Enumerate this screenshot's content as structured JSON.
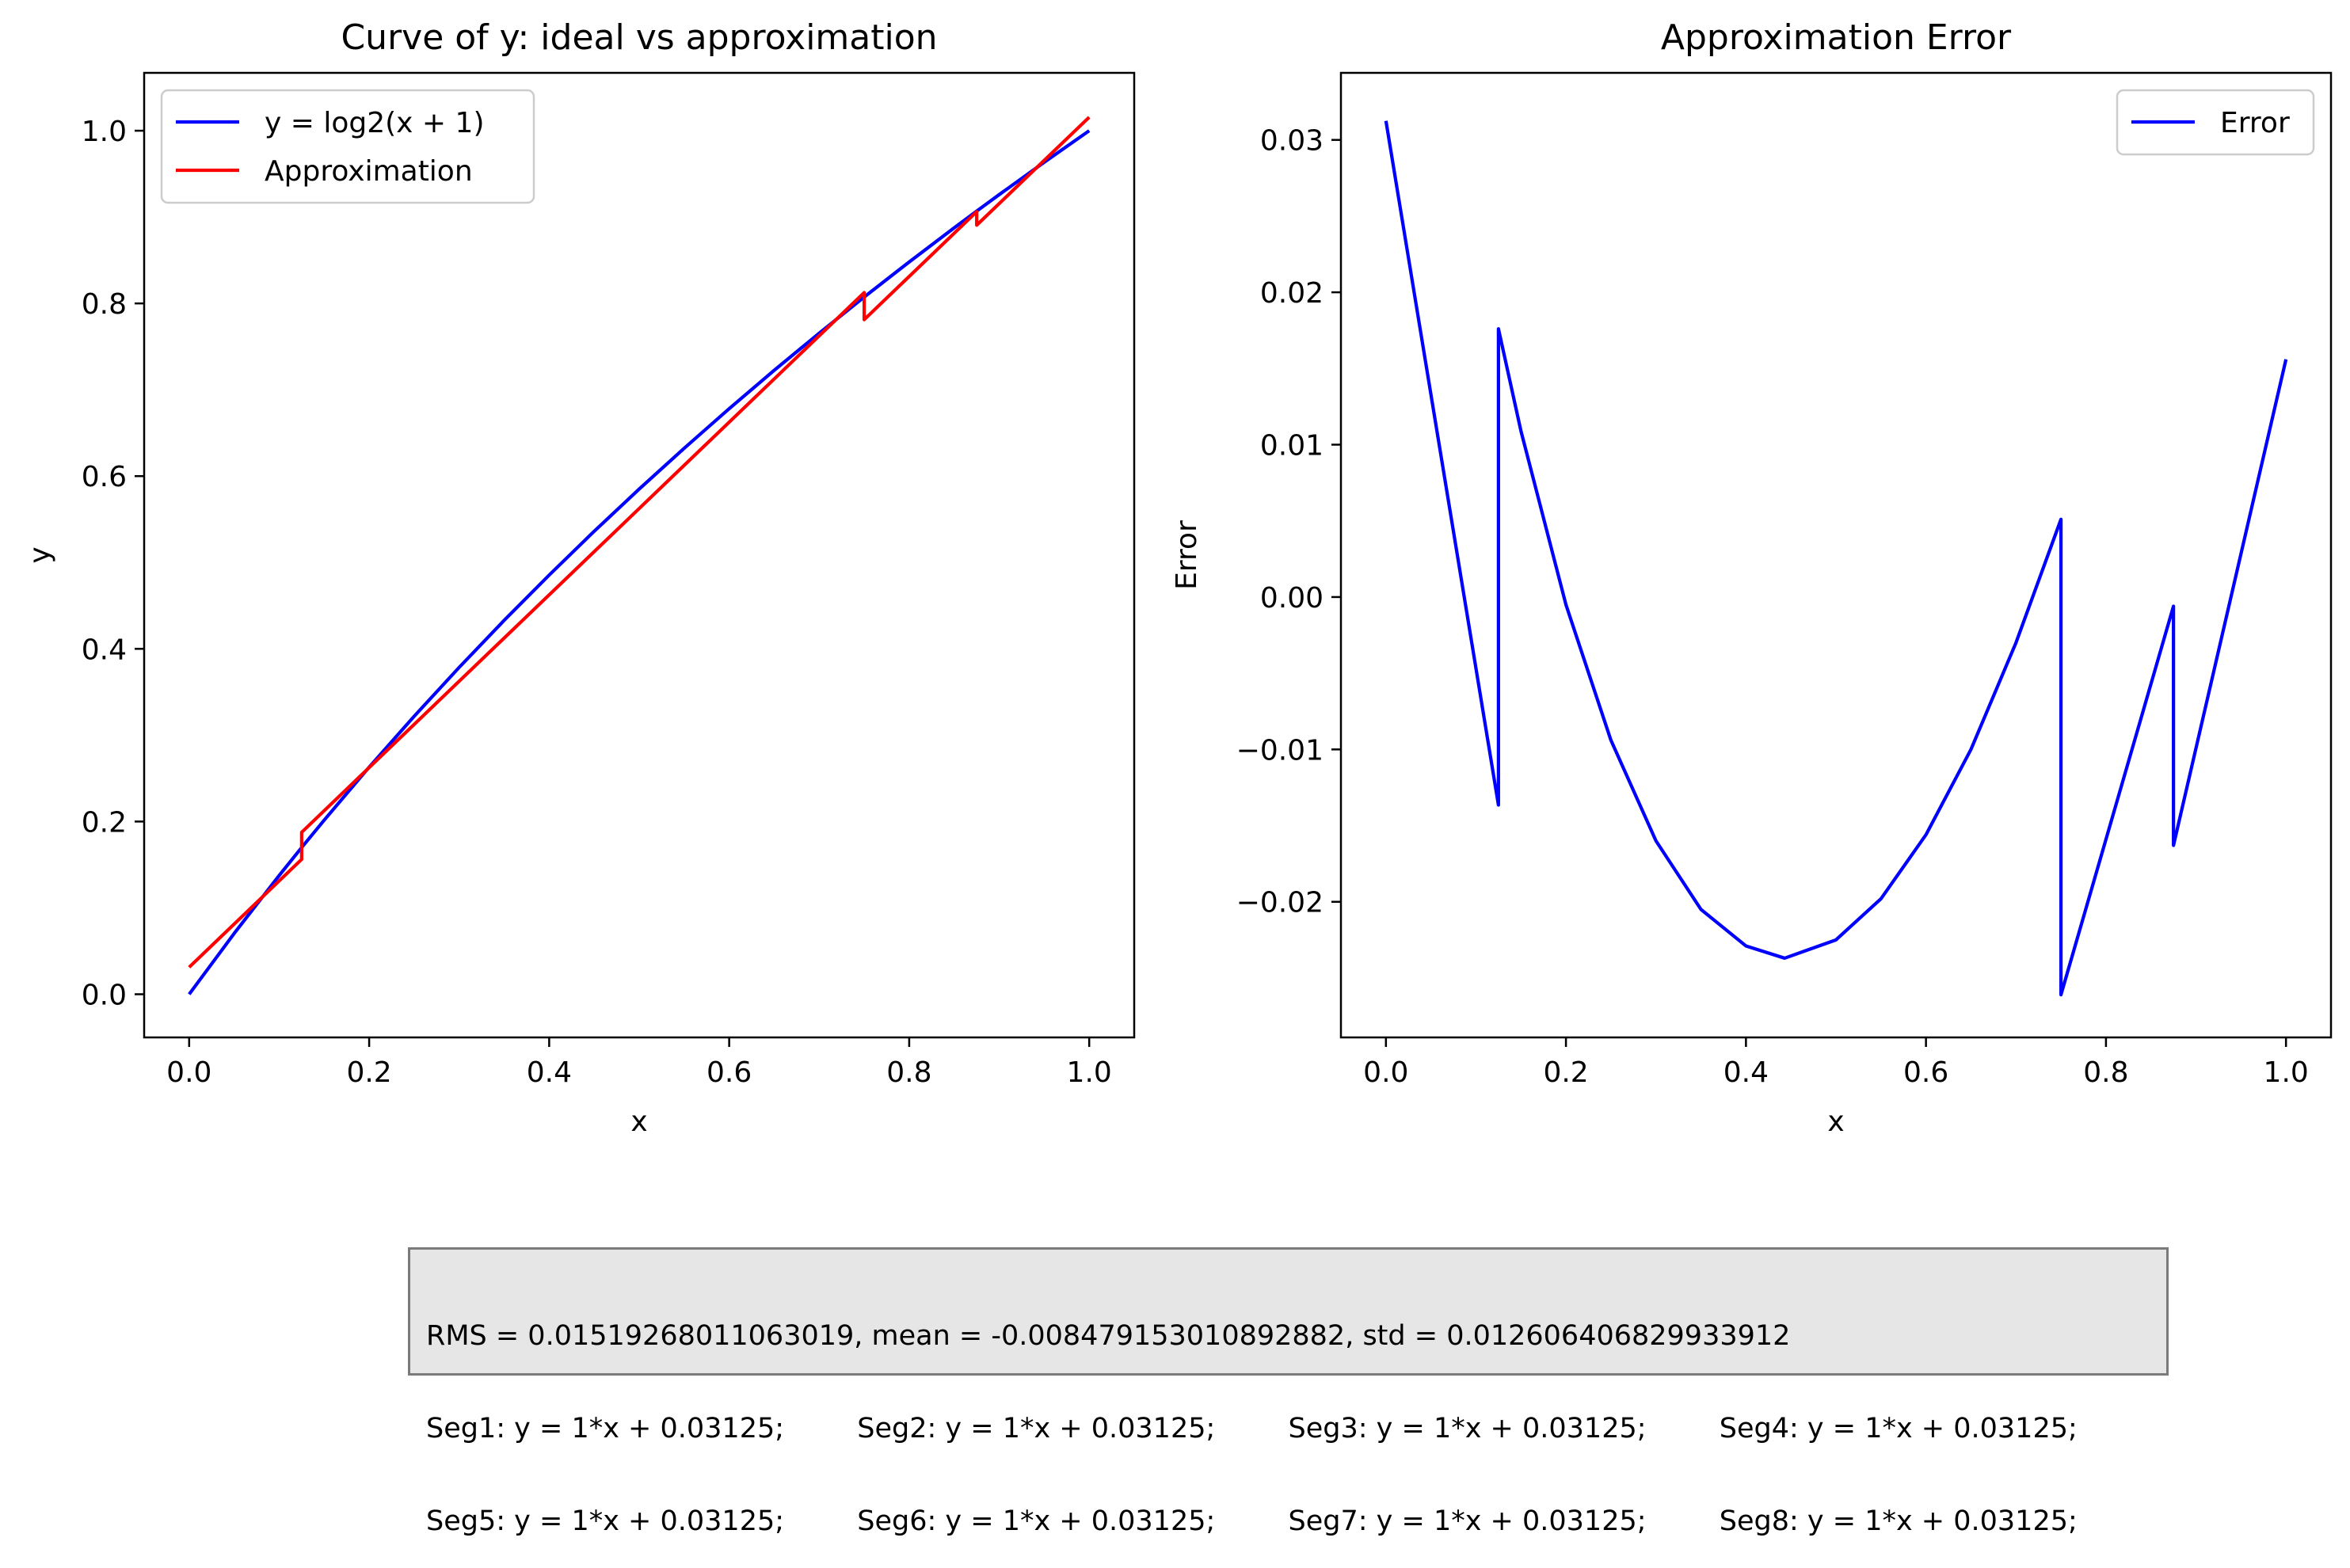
{
  "chart_data": [
    {
      "type": "line",
      "title": "Curve of y: ideal vs approximation",
      "xlabel": "x",
      "ylabel": "y",
      "xlim": [
        -0.05,
        1.05
      ],
      "ylim": [
        -0.05,
        1.067
      ],
      "xticks": [
        0.0,
        0.2,
        0.4,
        0.6,
        0.8,
        1.0
      ],
      "xtick_labels": [
        "0.0",
        "0.2",
        "0.4",
        "0.6",
        "0.8",
        "1.0"
      ],
      "yticks": [
        0.0,
        0.2,
        0.4,
        0.6,
        0.8,
        1.0
      ],
      "ytick_labels": [
        "0.0",
        "0.2",
        "0.4",
        "0.6",
        "0.8",
        "1.0"
      ],
      "legend": "top-left",
      "grid": false,
      "series": [
        {
          "name": "y = log2(x + 1)",
          "color": "#0000ff",
          "x": [
            0,
            0.05,
            0.1,
            0.125,
            0.15,
            0.2,
            0.25,
            0.3,
            0.35,
            0.4,
            0.45,
            0.5,
            0.55,
            0.6,
            0.65,
            0.7,
            0.75,
            0.8,
            0.85,
            0.875,
            0.9,
            0.95,
            1.0
          ],
          "y": [
            0,
            0.0704,
            0.1375,
            0.1699,
            0.2016,
            0.263,
            0.3219,
            0.3785,
            0.433,
            0.4854,
            0.5361,
            0.585,
            0.6323,
            0.6781,
            0.7225,
            0.7655,
            0.8074,
            0.848,
            0.8875,
            0.9069,
            0.926,
            0.9635,
            1.0
          ]
        },
        {
          "name": "Approximation",
          "color": "#ff0000",
          "x": [
            0,
            0.125,
            0.125,
            0.75,
            0.75,
            0.875,
            0.875,
            1.0
          ],
          "y": [
            0.03125,
            0.15625,
            0.1875,
            0.8125,
            0.78125,
            0.90625,
            0.890625,
            1.015625
          ]
        }
      ]
    },
    {
      "type": "line",
      "title": "Approximation Error",
      "xlabel": "x",
      "ylabel": "Error",
      "xlim": [
        -0.05,
        1.05
      ],
      "ylim": [
        -0.0289,
        0.0344
      ],
      "xticks": [
        0.0,
        0.2,
        0.4,
        0.6,
        0.8,
        1.0
      ],
      "xtick_labels": [
        "0.0",
        "0.2",
        "0.4",
        "0.6",
        "0.8",
        "1.0"
      ],
      "yticks": [
        -0.02,
        -0.01,
        0.0,
        0.01,
        0.02,
        0.03
      ],
      "ytick_labels": [
        "−0.02",
        "−0.01",
        "0.00",
        "0.01",
        "0.02",
        "0.03"
      ],
      "legend": "top-right",
      "grid": false,
      "series": [
        {
          "name": "Error",
          "color": "#0000ff",
          "x": [
            0,
            0.125,
            0.125,
            0.15,
            0.2,
            0.25,
            0.3,
            0.35,
            0.4,
            0.443,
            0.5,
            0.55,
            0.6,
            0.65,
            0.7,
            0.75,
            0.75,
            0.875,
            0.875,
            1.0
          ],
          "y": [
            0.03125,
            -0.01365,
            0.0176,
            0.0109,
            -0.0005,
            -0.0094,
            -0.016,
            -0.0205,
            -0.0229,
            -0.0237,
            -0.0225,
            -0.0198,
            -0.0156,
            -0.01,
            -0.003,
            0.0051,
            -0.0261,
            -0.0006,
            -0.0163,
            0.0156
          ]
        }
      ]
    }
  ],
  "stats": {
    "line1": "RMS = 0.01519268011063019, mean = -0.008479153010892882, std = 0.012606406829933912",
    "segments": [
      "Seg1: y = 1*x + 0.03125;",
      "Seg2: y = 1*x + 0.03125;",
      "Seg3: y = 1*x + 0.03125;",
      "Seg4: y = 1*x + 0.03125;",
      "Seg5: y = 1*x + 0.03125;",
      "Seg6: y = 1*x + 0.03125;",
      "Seg7: y = 1*x + 0.03125;",
      "Seg8: y = 1*x + 0.03125;"
    ]
  }
}
